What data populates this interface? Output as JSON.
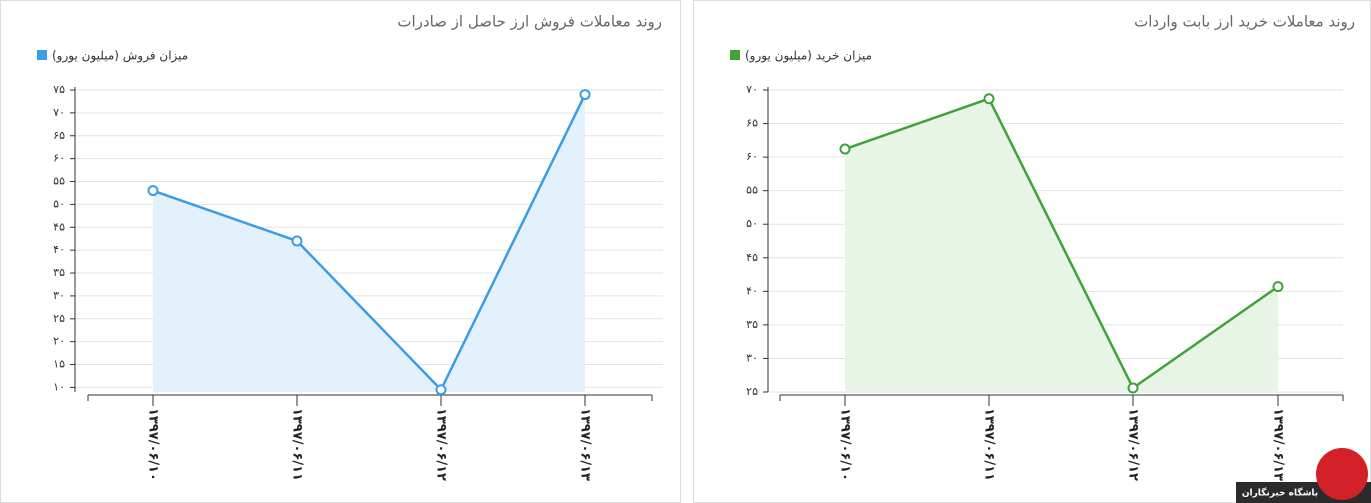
{
  "chart_data": [
    {
      "type": "line",
      "title": "روند معاملات فروش ارز حاصل از صادرات",
      "categories": [
        "۱۳۹۷/۰۶/۱۰",
        "۱۳۹۷/۰۶/۱۱",
        "۱۳۹۷/۰۶/۱۲",
        "۱۳۹۷/۰۶/۱۳"
      ],
      "series": [
        {
          "name": "میزان فروش (میلیون یورو)",
          "color": "#3a9ee4",
          "values": [
            53,
            42,
            9.5,
            74
          ]
        }
      ],
      "area_color": "#e3f1fc",
      "ylim": [
        9,
        75
      ],
      "yticks": [
        {
          "value": 10,
          "label": "۱۰"
        },
        {
          "value": 15,
          "label": "۱۵"
        },
        {
          "value": 20,
          "label": "۲۰"
        },
        {
          "value": 25,
          "label": "۲۵"
        },
        {
          "value": 30,
          "label": "۳۰"
        },
        {
          "value": 35,
          "label": "۳۵"
        },
        {
          "value": 40,
          "label": "۴۰"
        },
        {
          "value": 45,
          "label": "۴۵"
        },
        {
          "value": 50,
          "label": "۵۰"
        },
        {
          "value": 55,
          "label": "۵۵"
        },
        {
          "value": 60,
          "label": "۶۰"
        },
        {
          "value": 65,
          "label": "۶۵"
        },
        {
          "value": 70,
          "label": "۷۰"
        },
        {
          "value": 75,
          "label": "۷۵"
        }
      ],
      "grid": true
    },
    {
      "type": "line",
      "title": "روند معاملات خرید ارز بابت واردات",
      "categories": [
        "۱۳۹۷/۰۶/۱۰",
        "۱۳۹۷/۰۶/۱۱",
        "۱۳۹۷/۰۶/۱۲",
        "۱۳۹۷/۰۶/۱۳"
      ],
      "series": [
        {
          "name": "میزان خرید (میلیون یورو)",
          "color": "#3fa33a",
          "values": [
            61.2,
            68.7,
            25.6,
            40.7
          ]
        }
      ],
      "area_color": "#e8f4e6",
      "ylim": [
        25,
        70
      ],
      "yticks": [
        {
          "value": 25,
          "label": "۲۵"
        },
        {
          "value": 30,
          "label": "۳۰"
        },
        {
          "value": 35,
          "label": "۳۵"
        },
        {
          "value": 40,
          "label": "۴۰"
        },
        {
          "value": 45,
          "label": "۴۵"
        },
        {
          "value": 50,
          "label": "۵۰"
        },
        {
          "value": 55,
          "label": "۵۵"
        },
        {
          "value": 60,
          "label": "۶۰"
        },
        {
          "value": 65,
          "label": "۶۵"
        },
        {
          "value": 70,
          "label": "۷۰"
        }
      ],
      "grid": true
    }
  ],
  "logo_text": "باشگاه خبرنگاران"
}
